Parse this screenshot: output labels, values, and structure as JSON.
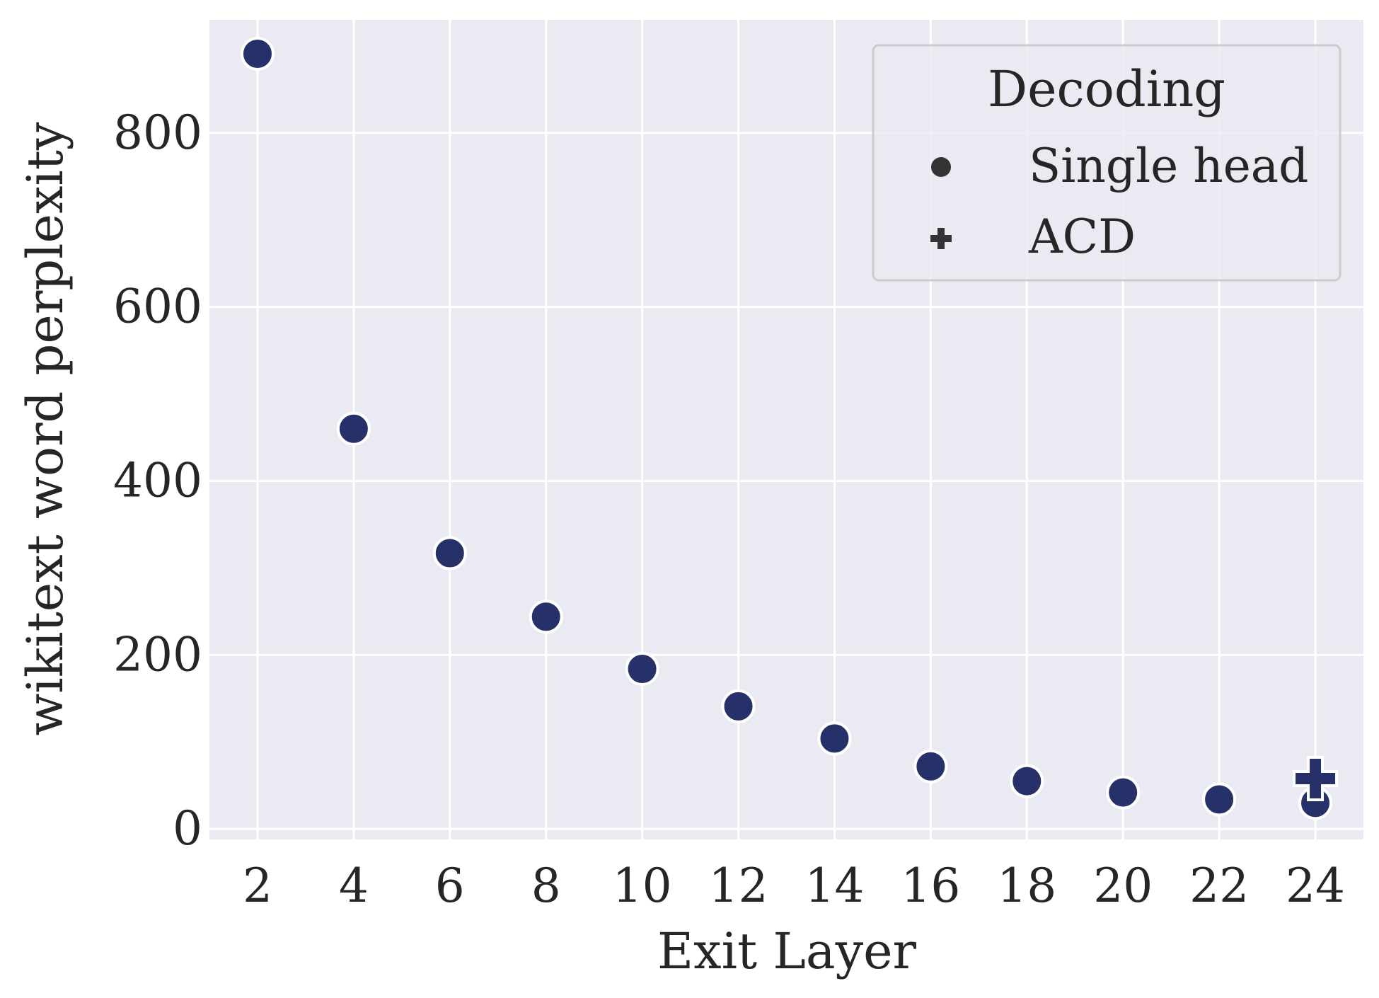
{
  "chart_data": {
    "type": "scatter",
    "xlabel": "Exit Layer",
    "ylabel": "wikitext word perplexity",
    "xlim": [
      1,
      25
    ],
    "ylim": [
      -12,
      930
    ],
    "xticks": [
      2,
      4,
      6,
      8,
      10,
      12,
      14,
      16,
      18,
      20,
      22,
      24
    ],
    "yticks": [
      0,
      200,
      400,
      600,
      800
    ],
    "grid": true,
    "legend": {
      "title": "Decoding",
      "placement": "top-right",
      "entries": [
        {
          "label": "Single head",
          "marker": "circle"
        },
        {
          "label": "ACD",
          "marker": "plus"
        }
      ]
    },
    "series": [
      {
        "name": "Single head",
        "marker": "circle",
        "x": [
          2,
          4,
          6,
          8,
          10,
          12,
          14,
          16,
          18,
          20,
          22,
          24
        ],
        "y": [
          891,
          460,
          317,
          244,
          184,
          141,
          104,
          72,
          55,
          42,
          34,
          30
        ]
      },
      {
        "name": "ACD",
        "marker": "plus",
        "x": [
          24
        ],
        "y": [
          58
        ]
      }
    ]
  },
  "colors": {
    "background": "#eaeaf2",
    "grid": "#ffffff",
    "marker": "#26316a",
    "legend_marker": "#333333",
    "text": "#262626"
  }
}
